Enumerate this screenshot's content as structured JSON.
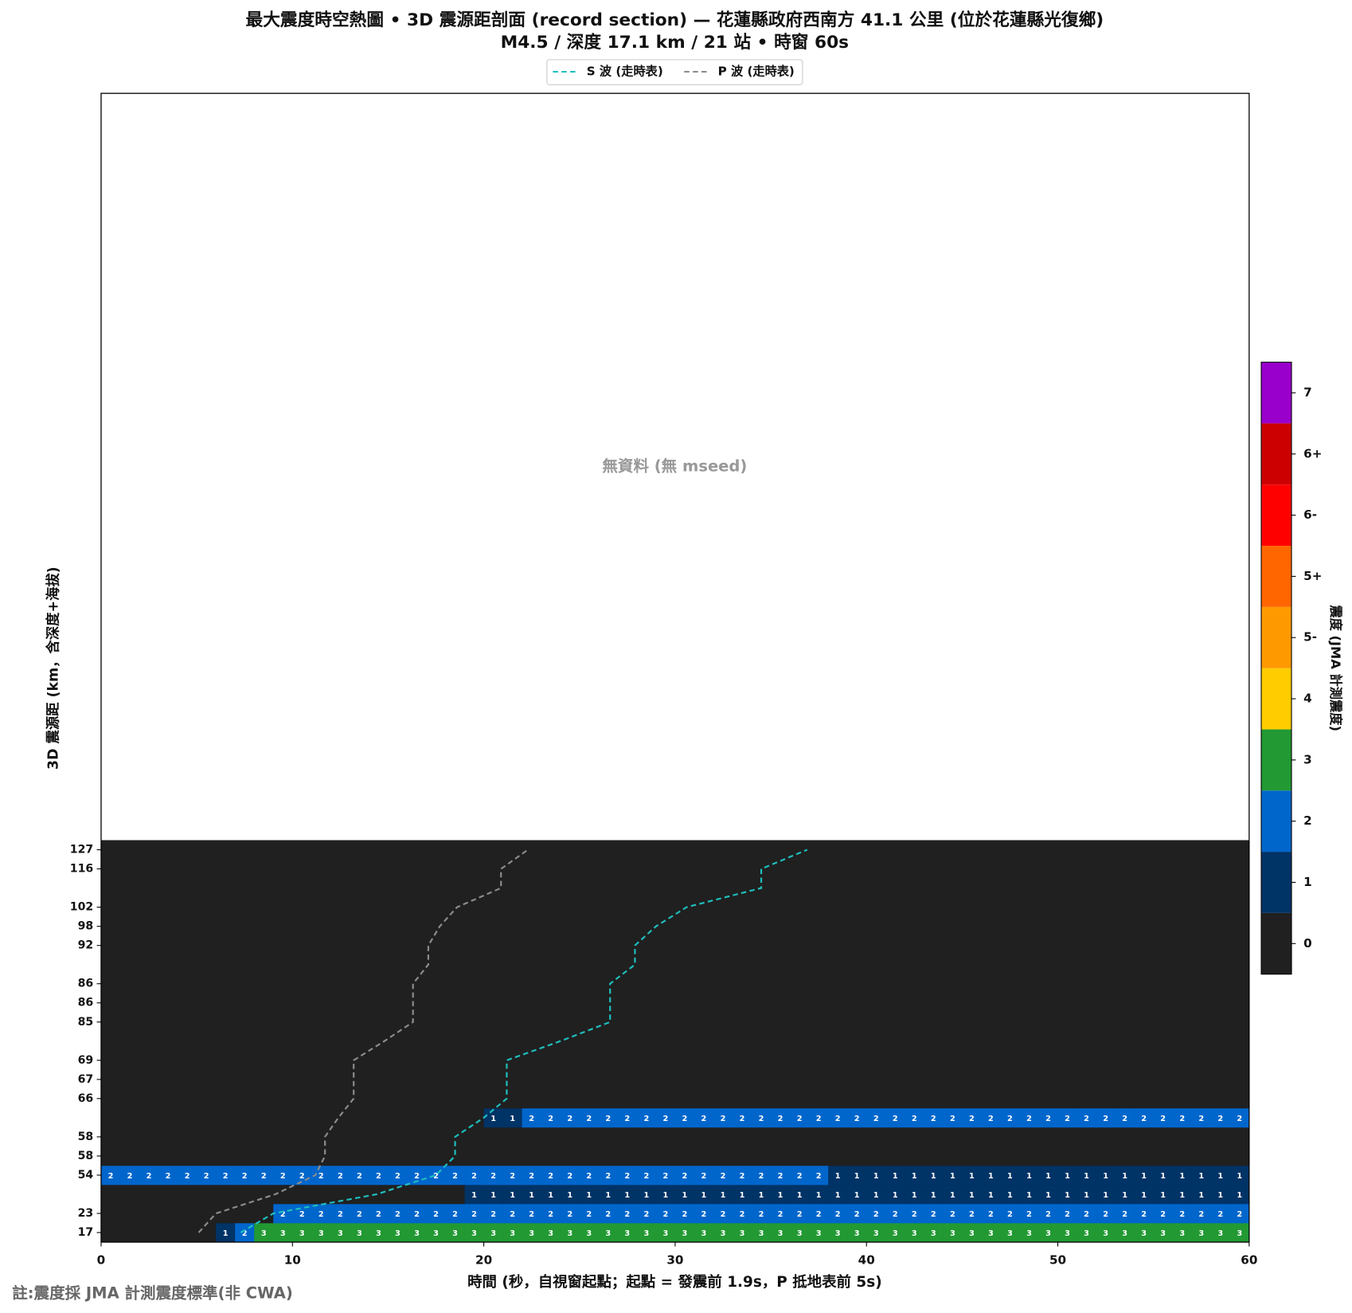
{
  "chart_data": {
    "type": "heatmap",
    "title": "最大震度時空熱圖 • 3D 震源距剖面 (record section) — 花蓮縣政府西南方  41.1  公里 (位於花蓮縣光復鄉)",
    "subtitle": "M4.5 / 深度 17.1 km / 21 站 • 時窗 60s",
    "xlabel": "時間 (秒，自視窗起點；起點 = 發震前 1.9s，P 抵地表前 5s)",
    "ylabel": "3D 震源距 (km，含深度+海拔)",
    "no_data_text": "無資料 (無 mseed)",
    "footnote": "註:震度採 JMA 計測震度標準(非 CWA)",
    "xlim": [
      0,
      60
    ],
    "xticks": [
      0,
      10,
      20,
      30,
      40,
      50,
      60
    ],
    "categories": [
      "17",
      "23",
      null,
      "54",
      "58",
      "58",
      null,
      "66",
      "67",
      "69",
      null,
      "85",
      "86",
      "86",
      null,
      "92",
      "98",
      "102",
      null,
      "116",
      "127"
    ],
    "values": [
      [
        0,
        0,
        0,
        0,
        0,
        0,
        1,
        2,
        3,
        3,
        3,
        3,
        3,
        3,
        3,
        3,
        3,
        3,
        3,
        3,
        3,
        3,
        3,
        3,
        3,
        3,
        3,
        3,
        3,
        3,
        3,
        3,
        3,
        3,
        3,
        3,
        3,
        3,
        3,
        3,
        3,
        3,
        3,
        3,
        3,
        3,
        3,
        3,
        3,
        3,
        3,
        3,
        3,
        3,
        3,
        3,
        3,
        3,
        3,
        3
      ],
      [
        0,
        0,
        0,
        0,
        0,
        0,
        0,
        0,
        0,
        2,
        2,
        2,
        2,
        2,
        2,
        2,
        2,
        2,
        2,
        2,
        2,
        2,
        2,
        2,
        2,
        2,
        2,
        2,
        2,
        2,
        2,
        2,
        2,
        2,
        2,
        2,
        2,
        2,
        2,
        2,
        2,
        2,
        2,
        2,
        2,
        2,
        2,
        2,
        2,
        2,
        2,
        2,
        2,
        2,
        2,
        2,
        2,
        2,
        2,
        2
      ],
      [
        0,
        0,
        0,
        0,
        0,
        0,
        0,
        0,
        0,
        0,
        0,
        0,
        0,
        0,
        0,
        0,
        0,
        0,
        0,
        1,
        1,
        1,
        1,
        1,
        1,
        1,
        1,
        1,
        1,
        1,
        1,
        1,
        1,
        1,
        1,
        1,
        1,
        1,
        1,
        1,
        1,
        1,
        1,
        1,
        1,
        1,
        1,
        1,
        1,
        1,
        1,
        1,
        1,
        1,
        1,
        1,
        1,
        1,
        1,
        1
      ],
      [
        2,
        2,
        2,
        2,
        2,
        2,
        2,
        2,
        2,
        2,
        2,
        2,
        2,
        2,
        2,
        2,
        2,
        2,
        2,
        2,
        2,
        2,
        2,
        2,
        2,
        2,
        2,
        2,
        2,
        2,
        2,
        2,
        2,
        2,
        2,
        2,
        2,
        2,
        1,
        1,
        1,
        1,
        1,
        1,
        1,
        1,
        1,
        1,
        1,
        1,
        1,
        1,
        1,
        1,
        1,
        1,
        1,
        1,
        1,
        1
      ],
      [
        0,
        0,
        0,
        0,
        0,
        0,
        0,
        0,
        0,
        0,
        0,
        0,
        0,
        0,
        0,
        0,
        0,
        0,
        0,
        0,
        0,
        0,
        0,
        0,
        0,
        0,
        0,
        0,
        0,
        0,
        0,
        0,
        0,
        0,
        0,
        0,
        0,
        0,
        0,
        0,
        0,
        0,
        0,
        0,
        0,
        0,
        0,
        0,
        0,
        0,
        0,
        0,
        0,
        0,
        0,
        0,
        0,
        0,
        0,
        0
      ],
      [
        0,
        0,
        0,
        0,
        0,
        0,
        0,
        0,
        0,
        0,
        0,
        0,
        0,
        0,
        0,
        0,
        0,
        0,
        0,
        0,
        0,
        0,
        0,
        0,
        0,
        0,
        0,
        0,
        0,
        0,
        0,
        0,
        0,
        0,
        0,
        0,
        0,
        0,
        0,
        0,
        0,
        0,
        0,
        0,
        0,
        0,
        0,
        0,
        0,
        0,
        0,
        0,
        0,
        0,
        0,
        0,
        0,
        0,
        0,
        0
      ],
      [
        0,
        0,
        0,
        0,
        0,
        0,
        0,
        0,
        0,
        0,
        0,
        0,
        0,
        0,
        0,
        0,
        0,
        0,
        0,
        0,
        1,
        1,
        2,
        2,
        2,
        2,
        2,
        2,
        2,
        2,
        2,
        2,
        2,
        2,
        2,
        2,
        2,
        2,
        2,
        2,
        2,
        2,
        2,
        2,
        2,
        2,
        2,
        2,
        2,
        2,
        2,
        2,
        2,
        2,
        2,
        2,
        2,
        2,
        2,
        2
      ],
      [
        0,
        0,
        0,
        0,
        0,
        0,
        0,
        0,
        0,
        0,
        0,
        0,
        0,
        0,
        0,
        0,
        0,
        0,
        0,
        0,
        0,
        0,
        0,
        0,
        0,
        0,
        0,
        0,
        0,
        0,
        0,
        0,
        0,
        0,
        0,
        0,
        0,
        0,
        0,
        0,
        0,
        0,
        0,
        0,
        0,
        0,
        0,
        0,
        0,
        0,
        0,
        0,
        0,
        0,
        0,
        0,
        0,
        0,
        0,
        0
      ],
      [
        0,
        0,
        0,
        0,
        0,
        0,
        0,
        0,
        0,
        0,
        0,
        0,
        0,
        0,
        0,
        0,
        0,
        0,
        0,
        0,
        0,
        0,
        0,
        0,
        0,
        0,
        0,
        0,
        0,
        0,
        0,
        0,
        0,
        0,
        0,
        0,
        0,
        0,
        0,
        0,
        0,
        0,
        0,
        0,
        0,
        0,
        0,
        0,
        0,
        0,
        0,
        0,
        0,
        0,
        0,
        0,
        0,
        0,
        0,
        0
      ],
      [
        0,
        0,
        0,
        0,
        0,
        0,
        0,
        0,
        0,
        0,
        0,
        0,
        0,
        0,
        0,
        0,
        0,
        0,
        0,
        0,
        0,
        0,
        0,
        0,
        0,
        0,
        0,
        0,
        0,
        0,
        0,
        0,
        0,
        0,
        0,
        0,
        0,
        0,
        0,
        0,
        0,
        0,
        0,
        0,
        0,
        0,
        0,
        0,
        0,
        0,
        0,
        0,
        0,
        0,
        0,
        0,
        0,
        0,
        0,
        0
      ],
      [
        0,
        0,
        0,
        0,
        0,
        0,
        0,
        0,
        0,
        0,
        0,
        0,
        0,
        0,
        0,
        0,
        0,
        0,
        0,
        0,
        0,
        0,
        0,
        0,
        0,
        0,
        0,
        0,
        0,
        0,
        0,
        0,
        0,
        0,
        0,
        0,
        0,
        0,
        0,
        0,
        0,
        0,
        0,
        0,
        0,
        0,
        0,
        0,
        0,
        0,
        0,
        0,
        0,
        0,
        0,
        0,
        0,
        0,
        0,
        0
      ],
      [
        0,
        0,
        0,
        0,
        0,
        0,
        0,
        0,
        0,
        0,
        0,
        0,
        0,
        0,
        0,
        0,
        0,
        0,
        0,
        0,
        0,
        0,
        0,
        0,
        0,
        0,
        0,
        0,
        0,
        0,
        0,
        0,
        0,
        0,
        0,
        0,
        0,
        0,
        0,
        0,
        0,
        0,
        0,
        0,
        0,
        0,
        0,
        0,
        0,
        0,
        0,
        0,
        0,
        0,
        0,
        0,
        0,
        0,
        0,
        0
      ],
      [
        0,
        0,
        0,
        0,
        0,
        0,
        0,
        0,
        0,
        0,
        0,
        0,
        0,
        0,
        0,
        0,
        0,
        0,
        0,
        0,
        0,
        0,
        0,
        0,
        0,
        0,
        0,
        0,
        0,
        0,
        0,
        0,
        0,
        0,
        0,
        0,
        0,
        0,
        0,
        0,
        0,
        0,
        0,
        0,
        0,
        0,
        0,
        0,
        0,
        0,
        0,
        0,
        0,
        0,
        0,
        0,
        0,
        0,
        0,
        0
      ],
      [
        0,
        0,
        0,
        0,
        0,
        0,
        0,
        0,
        0,
        0,
        0,
        0,
        0,
        0,
        0,
        0,
        0,
        0,
        0,
        0,
        0,
        0,
        0,
        0,
        0,
        0,
        0,
        0,
        0,
        0,
        0,
        0,
        0,
        0,
        0,
        0,
        0,
        0,
        0,
        0,
        0,
        0,
        0,
        0,
        0,
        0,
        0,
        0,
        0,
        0,
        0,
        0,
        0,
        0,
        0,
        0,
        0,
        0,
        0,
        0
      ],
      [
        0,
        0,
        0,
        0,
        0,
        0,
        0,
        0,
        0,
        0,
        0,
        0,
        0,
        0,
        0,
        0,
        0,
        0,
        0,
        0,
        0,
        0,
        0,
        0,
        0,
        0,
        0,
        0,
        0,
        0,
        0,
        0,
        0,
        0,
        0,
        0,
        0,
        0,
        0,
        0,
        0,
        0,
        0,
        0,
        0,
        0,
        0,
        0,
        0,
        0,
        0,
        0,
        0,
        0,
        0,
        0,
        0,
        0,
        0,
        0
      ],
      [
        0,
        0,
        0,
        0,
        0,
        0,
        0,
        0,
        0,
        0,
        0,
        0,
        0,
        0,
        0,
        0,
        0,
        0,
        0,
        0,
        0,
        0,
        0,
        0,
        0,
        0,
        0,
        0,
        0,
        0,
        0,
        0,
        0,
        0,
        0,
        0,
        0,
        0,
        0,
        0,
        0,
        0,
        0,
        0,
        0,
        0,
        0,
        0,
        0,
        0,
        0,
        0,
        0,
        0,
        0,
        0,
        0,
        0,
        0,
        0
      ],
      [
        0,
        0,
        0,
        0,
        0,
        0,
        0,
        0,
        0,
        0,
        0,
        0,
        0,
        0,
        0,
        0,
        0,
        0,
        0,
        0,
        0,
        0,
        0,
        0,
        0,
        0,
        0,
        0,
        0,
        0,
        0,
        0,
        0,
        0,
        0,
        0,
        0,
        0,
        0,
        0,
        0,
        0,
        0,
        0,
        0,
        0,
        0,
        0,
        0,
        0,
        0,
        0,
        0,
        0,
        0,
        0,
        0,
        0,
        0,
        0
      ],
      [
        0,
        0,
        0,
        0,
        0,
        0,
        0,
        0,
        0,
        0,
        0,
        0,
        0,
        0,
        0,
        0,
        0,
        0,
        0,
        0,
        0,
        0,
        0,
        0,
        0,
        0,
        0,
        0,
        0,
        0,
        0,
        0,
        0,
        0,
        0,
        0,
        0,
        0,
        0,
        0,
        0,
        0,
        0,
        0,
        0,
        0,
        0,
        0,
        0,
        0,
        0,
        0,
        0,
        0,
        0,
        0,
        0,
        0,
        0,
        0
      ],
      [
        0,
        0,
        0,
        0,
        0,
        0,
        0,
        0,
        0,
        0,
        0,
        0,
        0,
        0,
        0,
        0,
        0,
        0,
        0,
        0,
        0,
        0,
        0,
        0,
        0,
        0,
        0,
        0,
        0,
        0,
        0,
        0,
        0,
        0,
        0,
        0,
        0,
        0,
        0,
        0,
        0,
        0,
        0,
        0,
        0,
        0,
        0,
        0,
        0,
        0,
        0,
        0,
        0,
        0,
        0,
        0,
        0,
        0,
        0,
        0
      ],
      [
        0,
        0,
        0,
        0,
        0,
        0,
        0,
        0,
        0,
        0,
        0,
        0,
        0,
        0,
        0,
        0,
        0,
        0,
        0,
        0,
        0,
        0,
        0,
        0,
        0,
        0,
        0,
        0,
        0,
        0,
        0,
        0,
        0,
        0,
        0,
        0,
        0,
        0,
        0,
        0,
        0,
        0,
        0,
        0,
        0,
        0,
        0,
        0,
        0,
        0,
        0,
        0,
        0,
        0,
        0,
        0,
        0,
        0,
        0,
        0
      ],
      [
        0,
        0,
        0,
        0,
        0,
        0,
        0,
        0,
        0,
        0,
        0,
        0,
        0,
        0,
        0,
        0,
        0,
        0,
        0,
        0,
        0,
        0,
        0,
        0,
        0,
        0,
        0,
        0,
        0,
        0,
        0,
        0,
        0,
        0,
        0,
        0,
        0,
        0,
        0,
        0,
        0,
        0,
        0,
        0,
        0,
        0,
        0,
        0,
        0,
        0,
        0,
        0,
        0,
        0,
        0,
        0,
        0,
        0,
        0,
        0
      ]
    ],
    "lines": [
      {
        "name": "S 波 (走時表)",
        "color": "#1fbfbf",
        "values": [
          7.3,
          9.0,
          14.4,
          17.5,
          18.5,
          18.5,
          20.0,
          21.2,
          21.2,
          21.2,
          24.0,
          26.6,
          26.6,
          26.6,
          27.9,
          27.9,
          29.0,
          30.6,
          34.5,
          34.5,
          36.9
        ]
      },
      {
        "name": "P 波 (走時表)",
        "color": "#8c8c8c",
        "values": [
          5.1,
          6.0,
          9.1,
          11.2,
          11.7,
          11.7,
          12.4,
          13.2,
          13.2,
          13.2,
          14.8,
          16.3,
          16.3,
          16.3,
          17.1,
          17.1,
          17.7,
          18.6,
          20.9,
          20.9,
          22.3
        ]
      }
    ],
    "colorbar": {
      "label": "震度 (JMA 計測震度)",
      "levels": [
        {
          "label": "0",
          "color": "#202020"
        },
        {
          "label": "1",
          "color": "#003366"
        },
        {
          "label": "2",
          "color": "#0066cc"
        },
        {
          "label": "3",
          "color": "#229933"
        },
        {
          "label": "4",
          "color": "#ffcc00"
        },
        {
          "label": "5-",
          "color": "#ff9900"
        },
        {
          "label": "5+",
          "color": "#ff6600"
        },
        {
          "label": "6-",
          "color": "#ff0000"
        },
        {
          "label": "6+",
          "color": "#cc0000"
        },
        {
          "label": "7",
          "color": "#9900cc"
        }
      ]
    }
  }
}
